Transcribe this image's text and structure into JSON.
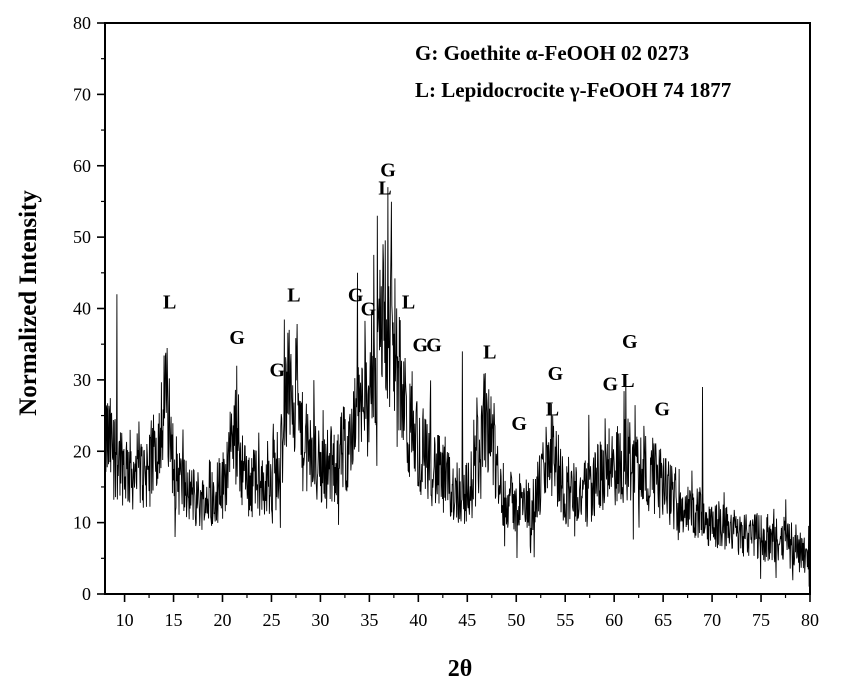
{
  "chart_data": {
    "type": "line",
    "title": "",
    "xlabel": "2θ",
    "ylabel": "Normalized Intensity",
    "xlim": [
      8,
      80
    ],
    "ylim": [
      0,
      80
    ],
    "x_ticks": [
      10,
      15,
      20,
      25,
      30,
      35,
      40,
      45,
      50,
      55,
      60,
      65,
      70,
      75,
      80
    ],
    "x_tick_labels": [
      "10",
      "15",
      "20",
      "25",
      "30",
      "35",
      "40",
      "45",
      "50",
      "55",
      "60",
      "65",
      "70",
      "75",
      "80"
    ],
    "y_ticks": [
      0,
      10,
      20,
      30,
      40,
      50,
      60,
      70,
      80
    ],
    "y_tick_labels": [
      "0",
      "10",
      "20",
      "30",
      "40",
      "50",
      "60",
      "70",
      "80"
    ],
    "grid": false,
    "legend": {
      "placement": "top-right",
      "entries": [
        "G: Goethite α-FeOOH 02 0273",
        "L: Lepidocrocite γ-FeOOH 74 1877"
      ]
    },
    "series": [
      {
        "color": "#000000",
        "baseline": [
          [
            8,
            22
          ],
          [
            9,
            20
          ],
          [
            10,
            18
          ],
          [
            11,
            17
          ],
          [
            12,
            17
          ],
          [
            13,
            19
          ],
          [
            14.2,
            28
          ],
          [
            15.2,
            17
          ],
          [
            16.5,
            14
          ],
          [
            18,
            13
          ],
          [
            20,
            15
          ],
          [
            21.3,
            24
          ],
          [
            22.3,
            16
          ],
          [
            24,
            15
          ],
          [
            25.5,
            17
          ],
          [
            27,
            31
          ],
          [
            28.2,
            21
          ],
          [
            30,
            17
          ],
          [
            32,
            19
          ],
          [
            34,
            25
          ],
          [
            35.5,
            31
          ],
          [
            36.5,
            40
          ],
          [
            37.5,
            33
          ],
          [
            39,
            23
          ],
          [
            41,
            19
          ],
          [
            43,
            15
          ],
          [
            45,
            14
          ],
          [
            46.2,
            18
          ],
          [
            47.2,
            26
          ],
          [
            48.2,
            15
          ],
          [
            50,
            12
          ],
          [
            52,
            13
          ],
          [
            53.5,
            21
          ],
          [
            55,
            14
          ],
          [
            57,
            14
          ],
          [
            59,
            17
          ],
          [
            61,
            19
          ],
          [
            63,
            18
          ],
          [
            65,
            15
          ],
          [
            67,
            12
          ],
          [
            70,
            10
          ],
          [
            75,
            8
          ],
          [
            80,
            6
          ]
        ],
        "spikes": [
          [
            9.2,
            42
          ],
          [
            26.8,
            37
          ],
          [
            33.8,
            45
          ],
          [
            35.8,
            53
          ],
          [
            36.4,
            49
          ],
          [
            36.9,
            57
          ],
          [
            37.2,
            48
          ],
          [
            44.5,
            34
          ],
          [
            61.2,
            30
          ],
          [
            69,
            29
          ]
        ]
      }
    ],
    "annotations": [
      {
        "text": "L",
        "x": 14.6,
        "y": 40
      },
      {
        "text": "G",
        "x": 21.5,
        "y": 35
      },
      {
        "text": "G",
        "x": 25.6,
        "y": 30.5
      },
      {
        "text": "L",
        "x": 27.3,
        "y": 41
      },
      {
        "text": "G",
        "x": 33.6,
        "y": 41
      },
      {
        "text": "G",
        "x": 34.9,
        "y": 39
      },
      {
        "text": "G",
        "x": 36.9,
        "y": 58.5
      },
      {
        "text": "L",
        "x": 36.6,
        "y": 56
      },
      {
        "text": "L",
        "x": 39,
        "y": 40
      },
      {
        "text": "G",
        "x": 40.2,
        "y": 34
      },
      {
        "text": "G",
        "x": 41.6,
        "y": 34
      },
      {
        "text": "L",
        "x": 47.3,
        "y": 33
      },
      {
        "text": "G",
        "x": 50.3,
        "y": 23
      },
      {
        "text": "G",
        "x": 54,
        "y": 30
      },
      {
        "text": "L",
        "x": 53.7,
        "y": 25
      },
      {
        "text": "G",
        "x": 59.6,
        "y": 28.5
      },
      {
        "text": "L",
        "x": 61.4,
        "y": 29
      },
      {
        "text": "G",
        "x": 61.6,
        "y": 34.5
      },
      {
        "text": "G",
        "x": 64.9,
        "y": 25
      }
    ]
  }
}
